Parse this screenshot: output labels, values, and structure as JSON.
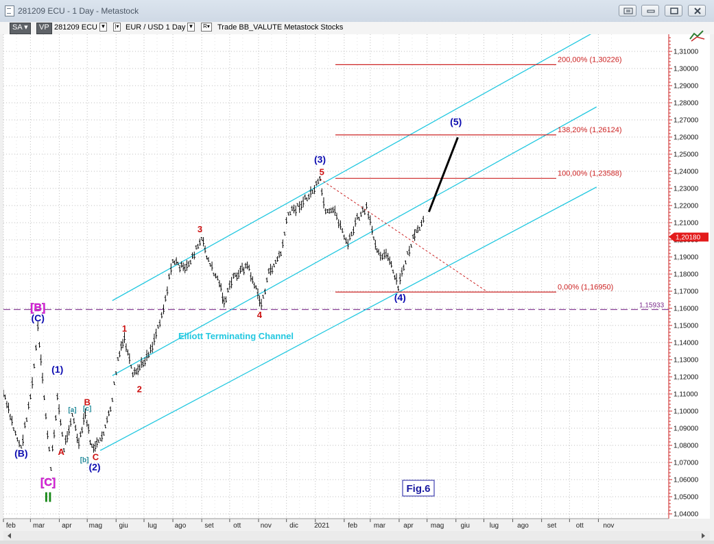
{
  "window": {
    "title": "281209 ECU - 1 Day - Metastock",
    "buttons": [
      "restore-icon",
      "minimize-icon",
      "maximize-icon",
      "close-icon"
    ]
  },
  "toolbar": {
    "sa": "SA",
    "vp": "VP",
    "symbol": "281209 ECU",
    "pair": "EUR / USD  1 Day",
    "r": "R",
    "trade": "Trade  BB_VALUTE  Metastock  Stocks",
    "chart_icon": "chart-tool-icon"
  },
  "chart_data": {
    "type": "ohlc",
    "title": "",
    "y_axis": {
      "ticks": [
        "1,04000",
        "1,05000",
        "1,06000",
        "1,07000",
        "1,08000",
        "1,09000",
        "1,10000",
        "1,11000",
        "1,12000",
        "1,13000",
        "1,14000",
        "1,15000",
        "1,16000",
        "1,17000",
        "1,18000",
        "1,19000",
        "1,20000",
        "1,21000",
        "1,22000",
        "1,23000",
        "1,24000",
        "1,25000",
        "1,26000",
        "1,27000",
        "1,28000",
        "1,29000",
        "1,30000",
        "1,31000"
      ],
      "ylim": [
        1.037,
        1.31
      ],
      "last_price": "1,20180",
      "last_price_value": 1.2018,
      "hline_label": "1,15933",
      "hline_value": 1.15933
    },
    "x_axis": {
      "labels": [
        "feb",
        "mar",
        "apr",
        "mag",
        "giu",
        "lug",
        "ago",
        "set",
        "ott",
        "nov",
        "dic",
        "2021",
        "feb",
        "mar",
        "apr",
        "mag",
        "giu",
        "lug",
        "ago",
        "set",
        "ott",
        "nov"
      ]
    },
    "price_path": [
      {
        "t": "2020-02-01",
        "v": 1.11
      },
      {
        "t": "2020-02-12",
        "v": 1.09
      },
      {
        "t": "2020-02-20",
        "v": 1.078
      },
      {
        "t": "2020-03-03",
        "v": 1.115
      },
      {
        "t": "2020-03-09",
        "v": 1.148
      },
      {
        "t": "2020-03-14",
        "v": 1.118
      },
      {
        "t": "2020-03-23",
        "v": 1.066
      },
      {
        "t": "2020-03-30",
        "v": 1.108
      },
      {
        "t": "2020-04-06",
        "v": 1.078
      },
      {
        "t": "2020-04-15",
        "v": 1.098
      },
      {
        "t": "2020-04-22",
        "v": 1.08
      },
      {
        "t": "2020-04-29",
        "v": 1.098
      },
      {
        "t": "2020-05-06",
        "v": 1.078
      },
      {
        "t": "2020-05-15",
        "v": 1.082
      },
      {
        "t": "2020-05-26",
        "v": 1.1
      },
      {
        "t": "2020-06-03",
        "v": 1.13
      },
      {
        "t": "2020-06-10",
        "v": 1.142
      },
      {
        "t": "2020-06-19",
        "v": 1.12
      },
      {
        "t": "2020-06-30",
        "v": 1.128
      },
      {
        "t": "2020-07-10",
        "v": 1.138
      },
      {
        "t": "2020-07-22",
        "v": 1.16
      },
      {
        "t": "2020-08-01",
        "v": 1.188
      },
      {
        "t": "2020-08-14",
        "v": 1.182
      },
      {
        "t": "2020-09-01",
        "v": 1.2
      },
      {
        "t": "2020-09-10",
        "v": 1.185
      },
      {
        "t": "2020-09-20",
        "v": 1.175
      },
      {
        "t": "2020-09-25",
        "v": 1.163
      },
      {
        "t": "2020-10-05",
        "v": 1.178
      },
      {
        "t": "2020-10-20",
        "v": 1.185
      },
      {
        "t": "2020-11-04",
        "v": 1.162
      },
      {
        "t": "2020-11-12",
        "v": 1.18
      },
      {
        "t": "2020-11-25",
        "v": 1.192
      },
      {
        "t": "2020-12-03",
        "v": 1.215
      },
      {
        "t": "2020-12-15",
        "v": 1.22
      },
      {
        "t": "2020-12-23",
        "v": 1.224
      },
      {
        "t": "2021-01-06",
        "v": 1.234
      },
      {
        "t": "2021-01-12",
        "v": 1.215
      },
      {
        "t": "2021-01-22",
        "v": 1.216
      },
      {
        "t": "2021-02-05",
        "v": 1.197
      },
      {
        "t": "2021-02-15",
        "v": 1.212
      },
      {
        "t": "2021-02-25",
        "v": 1.218
      },
      {
        "t": "2021-03-03",
        "v": 1.205
      },
      {
        "t": "2021-03-10",
        "v": 1.192
      },
      {
        "t": "2021-03-20",
        "v": 1.19
      },
      {
        "t": "2021-03-31",
        "v": 1.172
      },
      {
        "t": "2021-04-08",
        "v": 1.188
      },
      {
        "t": "2021-04-16",
        "v": 1.2
      },
      {
        "t": "2021-04-21",
        "v": 1.205
      },
      {
        "t": "2021-04-29",
        "v": 1.212
      }
    ],
    "channel": {
      "name": "Elliott Terminating Channel",
      "upper": [
        {
          "t": "2020-05-28",
          "v": 1.1645
        },
        {
          "t": "2021-10-30",
          "v": 1.322
        }
      ],
      "middle": [
        {
          "t": "2020-05-28",
          "v": 1.1207
        },
        {
          "t": "2021-10-30",
          "v": 1.2776
        }
      ],
      "lower": [
        {
          "t": "2020-05-15",
          "v": 1.077
        },
        {
          "t": "2021-10-30",
          "v": 1.2308
        }
      ]
    },
    "projection": [
      {
        "t": "2021-05-03",
        "v": 1.2163
      },
      {
        "t": "2021-06-03",
        "v": 1.2598
      }
    ],
    "trend_dashed": [
      {
        "t": "2021-01-06",
        "v": 1.2355
      },
      {
        "t": "2021-07-05",
        "v": 1.1695
      }
    ],
    "fib_levels": [
      {
        "label": "200,00% (1,30226)",
        "value": 1.30226
      },
      {
        "label": "138,20% (1,26124)",
        "value": 1.26124
      },
      {
        "label": "100,00% (1,23588)",
        "value": 1.23588
      },
      {
        "label": "0,00% (1,16950)",
        "value": 1.1695
      }
    ],
    "wave_labels": [
      {
        "text": "(B)",
        "t": "2020-02-20",
        "v": 1.0735,
        "color": "#0b0bb0",
        "size": 14
      },
      {
        "text": "(C)",
        "t": "2020-03-09",
        "v": 1.1525,
        "color": "#0b0bb0",
        "size": 14
      },
      {
        "text": "[B]",
        "t": "2020-03-09",
        "v": 1.1585,
        "color": "#e020e0",
        "size": 16
      },
      {
        "text": "[C]",
        "t": "2020-03-20",
        "v": 1.0565,
        "color": "#e020e0",
        "size": 16
      },
      {
        "text": "II",
        "t": "2020-03-20",
        "v": 1.047,
        "color": "#1a8a1a",
        "size": 20
      },
      {
        "text": "(1)",
        "t": "2020-03-30",
        "v": 1.1225,
        "color": "#0b0bb0",
        "size": 14
      },
      {
        "text": "A",
        "t": "2020-04-03",
        "v": 1.0745,
        "color": "#cc1010",
        "size": 13
      },
      {
        "text": "[a]",
        "t": "2020-04-15",
        "v": 1.0995,
        "color": "#208a9a",
        "size": 10
      },
      {
        "text": "B",
        "t": "2020-05-01",
        "v": 1.1035,
        "color": "#cc1010",
        "size": 13
      },
      {
        "text": "[c]",
        "t": "2020-05-01",
        "v": 1.1003,
        "color": "#208a9a",
        "size": 10
      },
      {
        "text": "[b]",
        "t": "2020-04-28",
        "v": 1.0703,
        "color": "#208a9a",
        "size": 10
      },
      {
        "text": "C",
        "t": "2020-05-10",
        "v": 1.0715,
        "color": "#cc1010",
        "size": 13
      },
      {
        "text": "(2)",
        "t": "2020-05-09",
        "v": 1.0655,
        "color": "#0b0bb0",
        "size": 14
      },
      {
        "text": "1",
        "t": "2020-06-10",
        "v": 1.1465,
        "color": "#cc1010",
        "size": 13
      },
      {
        "text": "2",
        "t": "2020-06-26",
        "v": 1.111,
        "color": "#cc1010",
        "size": 13
      },
      {
        "text": "3",
        "t": "2020-08-30",
        "v": 1.2045,
        "color": "#cc1010",
        "size": 13
      },
      {
        "text": "4",
        "t": "2020-11-02",
        "v": 1.1545,
        "color": "#cc1010",
        "size": 13
      },
      {
        "text": "(3)",
        "t": "2021-01-06",
        "v": 1.245,
        "color": "#0b0bb0",
        "size": 14
      },
      {
        "text": "5",
        "t": "2021-01-08",
        "v": 1.2378,
        "color": "#cc1010",
        "size": 13
      },
      {
        "text": "(4)",
        "t": "2021-04-02",
        "v": 1.1645,
        "color": "#0b0bb0",
        "size": 14
      },
      {
        "text": "(5)",
        "t": "2021-06-01",
        "v": 1.267,
        "color": "#0b0bb0",
        "size": 14
      }
    ],
    "fig_label": "Fig.6",
    "colors": {
      "price": "#000000",
      "channel": "#22c8e0",
      "fib": "#cc2222",
      "hline": "#7a2a8a",
      "last_price_bg": "#e31b1b",
      "grid": "#bdbdbd",
      "axis_text": "#b02020"
    }
  }
}
